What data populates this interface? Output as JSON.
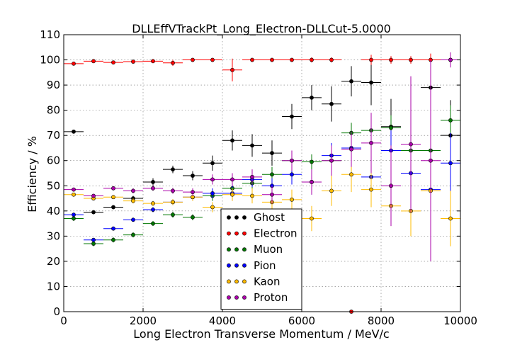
{
  "chart_data": {
    "type": "scatter",
    "title": "DLLEffVTrackPt_Long_Electron-DLLCut-5.0000",
    "xlabel": "Long Electron Transverse Momentum / MeV/c",
    "ylabel": "Efficiency / %",
    "xlim": [
      0,
      10000
    ],
    "ylim": [
      0,
      110
    ],
    "xticks": [
      0,
      2000,
      4000,
      6000,
      8000,
      10000
    ],
    "yticks": [
      0,
      10,
      20,
      30,
      40,
      50,
      60,
      70,
      80,
      90,
      100,
      110
    ],
    "grid": true,
    "legend_position": "lower-center",
    "x": [
      250,
      750,
      1250,
      1750,
      2250,
      2750,
      3250,
      3750,
      4250,
      4750,
      5250,
      5750,
      6250,
      6750,
      7250,
      7750,
      8250,
      8750,
      9250,
      9750
    ],
    "xerr": 250,
    "series": [
      {
        "name": "Ghost",
        "color": "#000000",
        "values": [
          71.5,
          39.5,
          41.5,
          45,
          51.5,
          56.5,
          54,
          59,
          68,
          66,
          63,
          77.5,
          85,
          82.5,
          91.5,
          91,
          73.5,
          null,
          89,
          70
        ],
        "yerr": [
          0.5,
          0.8,
          0.8,
          1,
          1.5,
          1.5,
          1.8,
          3,
          4,
          4.5,
          5,
          5,
          5,
          7,
          6,
          9,
          11,
          null,
          13,
          14
        ]
      },
      {
        "name": "Electron",
        "color": "#ff0000",
        "values": [
          98.5,
          99.5,
          99,
          99.3,
          99.5,
          98.8,
          100,
          100,
          96,
          100,
          100,
          100,
          100,
          100,
          0,
          100,
          100,
          100,
          100,
          100
        ],
        "yerr": [
          0.4,
          0.3,
          0.3,
          0.3,
          0.4,
          1.2,
          0.2,
          0.2,
          4.5,
          0.3,
          0.3,
          0.3,
          1,
          1,
          0,
          2,
          1.5,
          1.5,
          2.5,
          2.5
        ]
      },
      {
        "name": "Muon",
        "color": "#007700",
        "values": [
          37,
          27,
          28.5,
          30.5,
          35,
          38.5,
          37.5,
          46,
          49,
          51,
          54.5,
          60,
          59.5,
          60,
          71,
          72,
          73,
          64,
          64,
          76
        ],
        "yerr": [
          1,
          1,
          1,
          1,
          1,
          1.2,
          1.2,
          2,
          2.5,
          3,
          3,
          3,
          3,
          4,
          4,
          6,
          5,
          7,
          8,
          6
        ]
      },
      {
        "name": "Pion",
        "color": "#0000ff",
        "values": [
          38.5,
          28.5,
          33,
          36.5,
          40.5,
          43.5,
          45.5,
          47,
          47,
          52.5,
          50,
          54.5,
          51.5,
          62,
          65,
          53.5,
          64,
          55,
          48.5,
          59
        ],
        "yerr": [
          0.8,
          0.8,
          0.8,
          0.8,
          1,
          1.2,
          1.5,
          2,
          3,
          3,
          3,
          4,
          5,
          5,
          6,
          7,
          8,
          9,
          10,
          12
        ]
      },
      {
        "name": "Kaon",
        "color": "#ffbb00",
        "values": [
          46.5,
          45,
          45.5,
          44,
          43,
          43.5,
          45.5,
          41.5,
          46.5,
          46,
          43.5,
          44.5,
          37,
          48,
          54.5,
          48.5,
          42,
          40,
          48,
          37
        ],
        "yerr": [
          0.8,
          0.8,
          0.8,
          1,
          1,
          1.2,
          1.5,
          2,
          2.5,
          3,
          3.5,
          4,
          5,
          6,
          7,
          7,
          8,
          10,
          11,
          11
        ]
      },
      {
        "name": "Proton",
        "color": "#aa00aa",
        "values": [
          48.5,
          46,
          49,
          48,
          49,
          48,
          47.5,
          52.5,
          52.5,
          53.5,
          46.5,
          60,
          51.5,
          60,
          64.5,
          67,
          50,
          66.5,
          60,
          100
        ],
        "yerr": [
          0.8,
          0.8,
          0.8,
          1,
          1,
          1.2,
          1.5,
          2,
          2.5,
          3,
          3.5,
          4,
          5,
          6,
          7,
          12,
          16,
          27,
          40,
          3
        ]
      }
    ]
  }
}
